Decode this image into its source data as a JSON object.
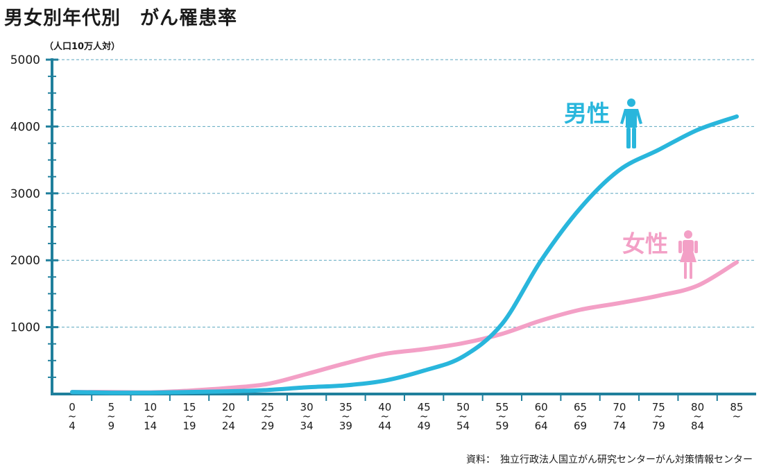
{
  "title": "男女別年代別　がん罹患率",
  "unit_label": "（人口10万人対）",
  "source": "資料：　独立行政法人国立がん研究センターがん対策情報センター",
  "colors": {
    "male": "#29b6dc",
    "female": "#f3a0c6",
    "axis": "#1f7f9c",
    "grid": "#5aa6bf"
  },
  "chart_data": {
    "type": "line",
    "title": "男女別年代別　がん罹患率",
    "ylabel": "（人口10万人対）",
    "xlabel": "",
    "ylim": [
      0,
      5000
    ],
    "yticks": [
      1000,
      2000,
      3000,
      4000,
      5000
    ],
    "grid": true,
    "categories": [
      {
        "top": "0",
        "bottom": "4"
      },
      {
        "top": "5",
        "bottom": "9"
      },
      {
        "top": "10",
        "bottom": "14"
      },
      {
        "top": "15",
        "bottom": "19"
      },
      {
        "top": "20",
        "bottom": "24"
      },
      {
        "top": "25",
        "bottom": "29"
      },
      {
        "top": "30",
        "bottom": "34"
      },
      {
        "top": "35",
        "bottom": "39"
      },
      {
        "top": "40",
        "bottom": "44"
      },
      {
        "top": "45",
        "bottom": "49"
      },
      {
        "top": "50",
        "bottom": "54"
      },
      {
        "top": "55",
        "bottom": "59"
      },
      {
        "top": "60",
        "bottom": "64"
      },
      {
        "top": "65",
        "bottom": "69"
      },
      {
        "top": "70",
        "bottom": "74"
      },
      {
        "top": "75",
        "bottom": "79"
      },
      {
        "top": "80",
        "bottom": "84"
      },
      {
        "top": "85",
        "bottom": ""
      }
    ],
    "series": [
      {
        "name": "男性",
        "color": "#29b6dc",
        "icon": "male-person-icon",
        "values": [
          30,
          20,
          20,
          30,
          40,
          60,
          100,
          130,
          200,
          350,
          560,
          1050,
          2000,
          2780,
          3350,
          3650,
          3950,
          4150
        ]
      },
      {
        "name": "女性",
        "color": "#f3a0c6",
        "icon": "female-person-icon",
        "values": [
          30,
          30,
          25,
          50,
          90,
          150,
          300,
          460,
          600,
          670,
          760,
          900,
          1100,
          1260,
          1360,
          1470,
          1620,
          1970
        ]
      }
    ]
  }
}
